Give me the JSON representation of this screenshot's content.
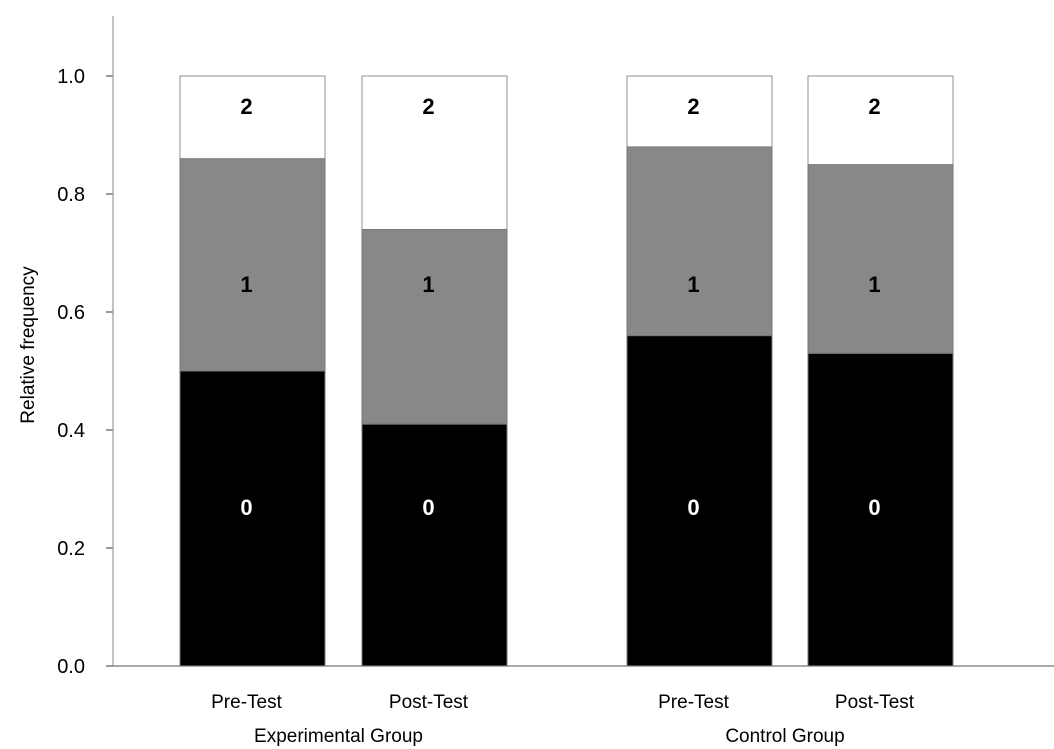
{
  "chart_data": {
    "type": "bar",
    "stacked": true,
    "ylabel": "Relative frequency",
    "ylim": [
      0,
      1.1
    ],
    "yticks": [
      "0.0",
      "0.2",
      "0.4",
      "0.6",
      "0.8",
      "1.0"
    ],
    "categories": [
      "Pre-Test",
      "Post-Test",
      "Pre-Test",
      "Post-Test"
    ],
    "groups": [
      {
        "label": "Experimental Group",
        "categories": [
          0,
          1
        ]
      },
      {
        "label": "Control Group",
        "categories": [
          2,
          3
        ]
      }
    ],
    "series": [
      {
        "name": "0",
        "color": "#000000",
        "label_color": "#ffffff",
        "values": [
          0.5,
          0.41,
          0.56,
          0.53
        ]
      },
      {
        "name": "1",
        "color": "#888888",
        "label_color": "#000000",
        "values": [
          0.36,
          0.33,
          0.32,
          0.32
        ]
      },
      {
        "name": "2",
        "color": "#ffffff",
        "label_color": "#000000",
        "values": [
          0.14,
          0.26,
          0.12,
          0.15
        ]
      }
    ]
  }
}
